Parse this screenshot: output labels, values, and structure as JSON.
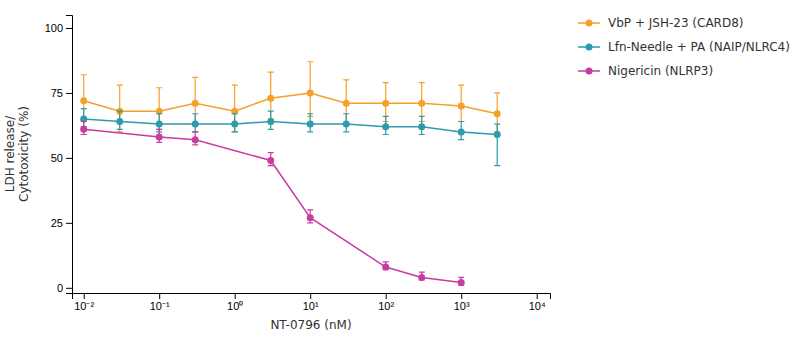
{
  "chart_data": {
    "type": "line",
    "xlabel": "NT-0796 (nM)",
    "ylabel": "LDH release/\nCytotoxicity (%)",
    "log": "x",
    "grid": false,
    "legend": "right",
    "xlim": [
      0.007,
      15000
    ],
    "ylim": [
      -2,
      105
    ],
    "xticks": [
      {
        "value": 0.01,
        "label": "10⁻²"
      },
      {
        "value": 0.1,
        "label": "10⁻¹"
      },
      {
        "value": 1,
        "label": "10⁰"
      },
      {
        "value": 10,
        "label": "10¹"
      },
      {
        "value": 100,
        "label": "10²"
      },
      {
        "value": 1000,
        "label": "10³"
      },
      {
        "value": 10000,
        "label": "10⁴"
      }
    ],
    "yticks": [
      0,
      25,
      50,
      75,
      100
    ],
    "series": [
      {
        "name": "VbP + JSH-23 (CARD8)",
        "color": "#F5A028",
        "marker": "circle",
        "line_style": "solid",
        "x": [
          0.01,
          0.03,
          0.1,
          0.3,
          1.0,
          3.0,
          10.0,
          30.0,
          100.0,
          300.0,
          1000.0,
          3000.0
        ],
        "values": [
          72,
          68,
          68,
          71,
          68,
          73,
          75,
          71,
          71,
          71,
          70,
          67
        ],
        "yerr_low": [
          8,
          8,
          7,
          8,
          8,
          8,
          9,
          8,
          7,
          7,
          6,
          7
        ],
        "yerr_high": [
          10,
          10,
          9,
          10,
          10,
          10,
          12,
          9,
          8,
          8,
          8,
          8
        ]
      },
      {
        "name": "Lfn-Needle + PA (NAIP/NLRC4)",
        "color": "#2B9BAD",
        "marker": "circle",
        "line_style": "solid",
        "x": [
          0.01,
          0.03,
          0.1,
          0.3,
          1.0,
          3.0,
          10.0,
          30.0,
          100.0,
          300.0,
          1000.0,
          3000.0
        ],
        "values": [
          65,
          64,
          63,
          63,
          63,
          64,
          63,
          63,
          62,
          62,
          60,
          59
        ],
        "yerr_low": [
          3,
          3,
          3,
          3,
          3,
          3,
          3,
          3,
          3,
          3,
          3,
          12
        ],
        "yerr_high": [
          4,
          4,
          4,
          4,
          4,
          4,
          4,
          4,
          4,
          4,
          4,
          4
        ]
      },
      {
        "name": "Nigericin (NLRP3)",
        "color": "#C93B9E",
        "marker": "circle",
        "line_style": "solid",
        "x": [
          0.01,
          0.1,
          0.3,
          3.0,
          10.0,
          100.0,
          300.0,
          1000.0
        ],
        "values": [
          61,
          58,
          57,
          49,
          27,
          8,
          4,
          2
        ],
        "yerr_low": [
          2,
          2,
          2,
          2,
          2,
          1,
          1,
          1
        ],
        "yerr_high": [
          3,
          3,
          3,
          3,
          3,
          2,
          2,
          2
        ]
      }
    ]
  }
}
